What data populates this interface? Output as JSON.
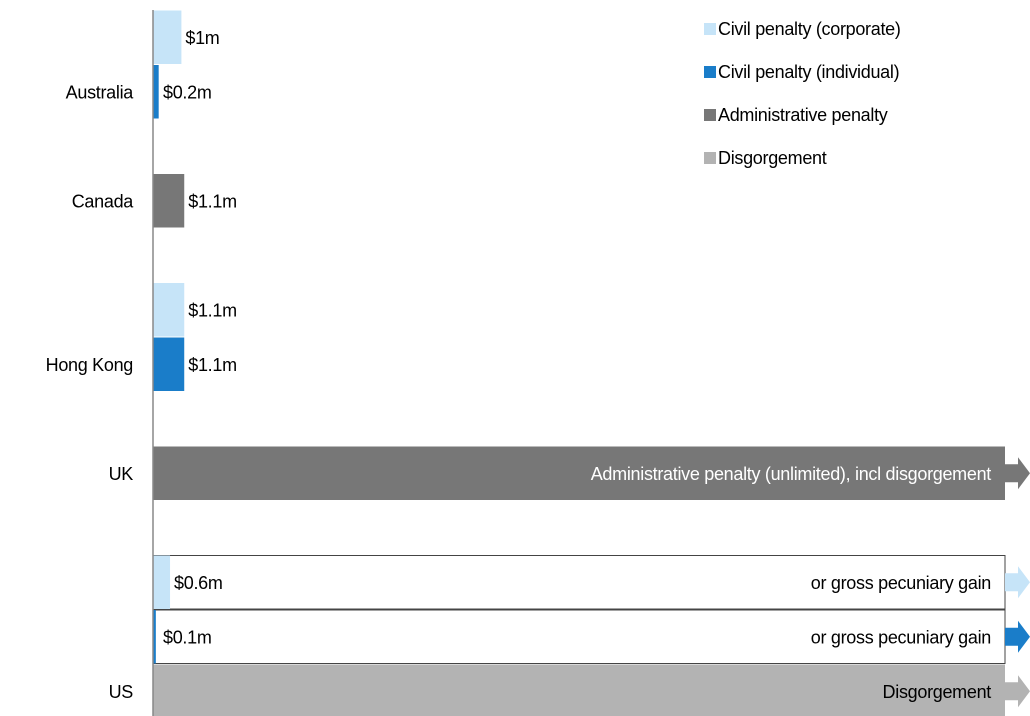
{
  "chart_data": {
    "type": "bar",
    "orientation": "horizontal",
    "categories": [
      "Australia",
      "Canada",
      "Hong Kong",
      "UK",
      "US"
    ],
    "xlim": [
      0,
      30
    ],
    "series": [
      {
        "name": "Civil penalty (corporate)",
        "color": "#c6e4f8",
        "values": [
          1,
          null,
          1.1,
          null,
          0.6
        ],
        "value_labels": [
          "$1m",
          null,
          "$1.1m",
          null,
          "$0.6m"
        ]
      },
      {
        "name": "Civil penalty (individual)",
        "color": "#1a7dc9",
        "values": [
          0.2,
          null,
          1.1,
          null,
          0.1
        ],
        "value_labels": [
          "$0.2m",
          null,
          "$1.1m",
          null,
          "$0.1m"
        ]
      },
      {
        "name": "Administrative penalty",
        "color": "#777777",
        "values": [
          null,
          1.1,
          null,
          null,
          null
        ],
        "value_labels": [
          null,
          "$1.1m",
          null,
          null,
          null
        ]
      },
      {
        "name": "Disgorgement",
        "color": "#b3b3b3",
        "values": [
          null,
          null,
          null,
          null,
          null
        ],
        "value_labels": [
          null,
          null,
          null,
          null,
          null
        ]
      }
    ],
    "annotations": [
      {
        "category": "UK",
        "series": "Administrative penalty",
        "text": "Administrative penalty (unlimited), incl disgorgement"
      },
      {
        "category": "US",
        "series": "Civil penalty (corporate)",
        "text": "or gross pecuniary gain"
      },
      {
        "category": "US",
        "series": "Civil penalty (individual)",
        "text": "or gross pecuniary gain"
      },
      {
        "category": "US",
        "series": "Disgorgement",
        "text": "Disgorgement"
      }
    ],
    "legend": "top-right"
  }
}
